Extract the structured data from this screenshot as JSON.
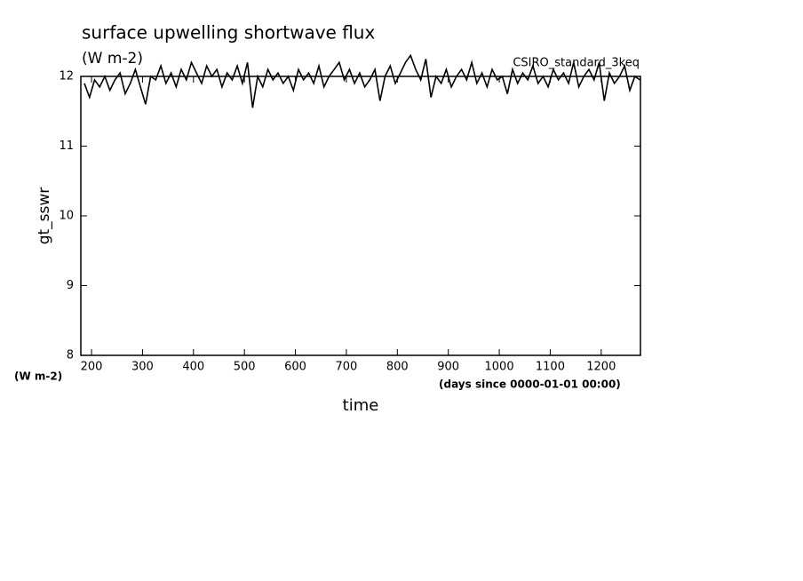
{
  "chart_data": {
    "type": "line",
    "title": "surface upwelling shortwave flux",
    "subtitle": "(W m-2)",
    "annotation": "CSIRO_standard_3keq",
    "y_label": "gt_sswr",
    "y_unit": "(W m-2)",
    "x_unit": "(days since 0000-01-01 00:00)",
    "x_label": "time",
    "xlim": [
      179,
      1277
    ],
    "xticks": [
      200,
      300,
      400,
      500,
      600,
      700,
      800,
      900,
      1000,
      1100,
      1200
    ],
    "ylim": [
      8,
      12
    ],
    "yticks": [
      8,
      9,
      10,
      11,
      12
    ],
    "color": "#000000",
    "x": [
      186,
      196,
      206,
      216,
      226,
      236,
      246,
      256,
      266,
      276,
      286,
      296,
      306,
      316,
      326,
      336,
      346,
      356,
      366,
      376,
      386,
      396,
      406,
      416,
      426,
      436,
      446,
      456,
      466,
      476,
      486,
      496,
      506,
      516,
      526,
      536,
      546,
      556,
      566,
      576,
      586,
      596,
      606,
      616,
      626,
      636,
      646,
      656,
      666,
      676,
      686,
      696,
      706,
      716,
      726,
      736,
      746,
      756,
      766,
      776,
      786,
      796,
      806,
      816,
      826,
      836,
      846,
      856,
      866,
      876,
      886,
      896,
      906,
      916,
      926,
      936,
      946,
      956,
      966,
      976,
      986,
      996,
      1006,
      1016,
      1026,
      1036,
      1046,
      1056,
      1066,
      1076,
      1086,
      1096,
      1106,
      1116,
      1126,
      1136,
      1146,
      1156,
      1166,
      1176,
      1186,
      1196,
      1206,
      1216,
      1226,
      1236,
      1246,
      1256,
      1266,
      1276
    ],
    "values": [
      11.9,
      11.7,
      11.95,
      11.85,
      12.0,
      11.8,
      11.95,
      12.05,
      11.75,
      11.9,
      12.1,
      11.85,
      11.6,
      12.0,
      11.95,
      12.15,
      11.9,
      12.05,
      11.85,
      12.1,
      11.95,
      12.2,
      12.05,
      11.9,
      12.15,
      12.0,
      12.1,
      11.85,
      12.05,
      11.95,
      12.15,
      11.9,
      12.2,
      11.55,
      12.0,
      11.85,
      12.1,
      11.95,
      12.05,
      11.9,
      12.0,
      11.8,
      12.1,
      11.95,
      12.05,
      11.9,
      12.15,
      11.85,
      12.0,
      12.1,
      12.2,
      11.95,
      12.1,
      11.9,
      12.05,
      11.85,
      11.95,
      12.1,
      11.65,
      12.0,
      12.15,
      11.9,
      12.05,
      12.2,
      12.3,
      12.1,
      11.95,
      12.25,
      11.7,
      12.0,
      11.9,
      12.1,
      11.85,
      12.0,
      12.1,
      11.95,
      12.2,
      11.9,
      12.05,
      11.85,
      12.1,
      11.95,
      12.0,
      11.75,
      12.1,
      11.9,
      12.05,
      11.95,
      12.15,
      11.9,
      12.0,
      11.85,
      12.1,
      11.95,
      12.05,
      11.9,
      12.2,
      11.85,
      12.0,
      12.1,
      11.95,
      12.2,
      11.65,
      12.05,
      11.9,
      12.0,
      12.15,
      11.8,
      12.0,
      11.95
    ]
  }
}
